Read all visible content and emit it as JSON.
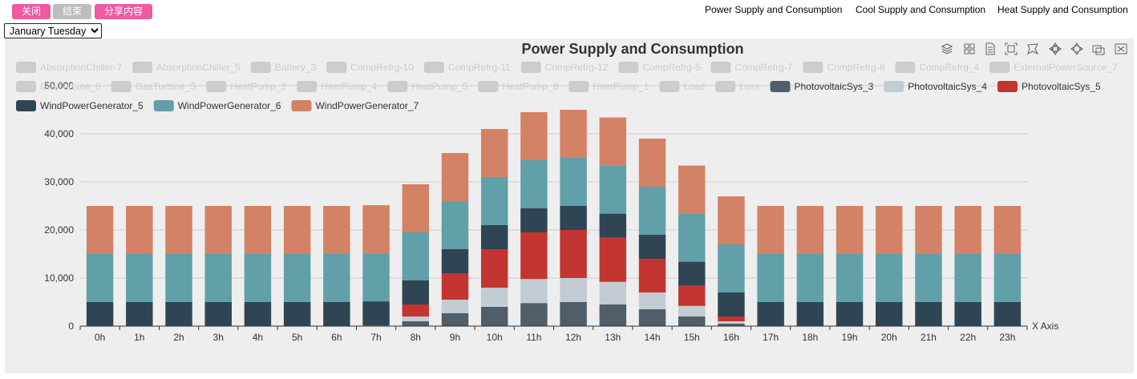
{
  "toolbar": {
    "close_label": "关闭",
    "end_label": "结束",
    "share_label": "分享内容"
  },
  "nav": {
    "power": "Power Supply and Consumption",
    "cool": "Cool Supply and Consumption",
    "heat": "Heat Supply and Consumption"
  },
  "date_select": {
    "selected": "January Tuesday",
    "options": [
      "January Tuesday"
    ]
  },
  "chart_tools": [
    "stack-icon",
    "grid-icon",
    "data-view-icon",
    "zoom-icon",
    "lasso-icon",
    "zoom-reset-icon",
    "restore-icon",
    "save-image-icon",
    "close-icon"
  ],
  "chart_data": {
    "type": "bar",
    "title": "Power Supply and Consumption",
    "xlabel": "X Axis",
    "ylabel": "",
    "ylim": [
      0,
      50000
    ],
    "yticks": [
      0,
      10000,
      20000,
      30000,
      40000,
      50000
    ],
    "ytick_labels": [
      "0",
      "10,000",
      "20,000",
      "30,000",
      "40,000",
      "50,000"
    ],
    "stacked": true,
    "grid": true,
    "legend_position": "top",
    "categories": [
      "0h",
      "1h",
      "2h",
      "3h",
      "4h",
      "5h",
      "6h",
      "7h",
      "8h",
      "9h",
      "10h",
      "11h",
      "12h",
      "13h",
      "14h",
      "15h",
      "16h",
      "17h",
      "18h",
      "19h",
      "20h",
      "21h",
      "22h",
      "23h"
    ],
    "legend": [
      {
        "name": "AbsorptionChiller-7",
        "active": false
      },
      {
        "name": "AbsorptionChiller_5",
        "active": false
      },
      {
        "name": "Battery_3",
        "active": false
      },
      {
        "name": "CompRefrg-10",
        "active": false
      },
      {
        "name": "CompRefrg-11",
        "active": false
      },
      {
        "name": "CompRefrg-12",
        "active": false
      },
      {
        "name": "CompRefrg-5",
        "active": false
      },
      {
        "name": "CompRefrg-7",
        "active": false
      },
      {
        "name": "CompRefrg-8",
        "active": false
      },
      {
        "name": "CompRefrg_4",
        "active": false
      },
      {
        "name": "ExternalPowerSource_7",
        "active": false
      },
      {
        "name": "GasTurbine_6",
        "active": false
      },
      {
        "name": "GasTurbine_5",
        "active": false
      },
      {
        "name": "HeatPump_2",
        "active": false
      },
      {
        "name": "HeatPump_4",
        "active": false
      },
      {
        "name": "HeatPump_5",
        "active": false
      },
      {
        "name": "HeatPump_8",
        "active": false
      },
      {
        "name": "HeatPump_1",
        "active": false
      },
      {
        "name": "Load",
        "active": false
      },
      {
        "name": "Loss",
        "active": false
      },
      {
        "name": "PhotovoltaicSys_3",
        "active": true,
        "color": "#4f5e68"
      },
      {
        "name": "PhotovoltaicSys_4",
        "active": true,
        "color": "#c3ccd2"
      },
      {
        "name": "PhotovoltaicSys_5",
        "active": true,
        "color": "#c23531"
      },
      {
        "name": "WindPowerGenerator_5",
        "active": true,
        "color": "#2f4554"
      },
      {
        "name": "WindPowerGenerator_6",
        "active": true,
        "color": "#61a0a8"
      },
      {
        "name": "WindPowerGenerator_7",
        "active": true,
        "color": "#d48265"
      }
    ],
    "series": [
      {
        "name": "PhotovoltaicSys_3",
        "color": "#4f5e68",
        "values": [
          0,
          0,
          0,
          0,
          0,
          0,
          0,
          50,
          1000,
          2700,
          4000,
          4800,
          5000,
          4500,
          3500,
          2000,
          500,
          0,
          0,
          0,
          0,
          0,
          0,
          0
        ]
      },
      {
        "name": "PhotovoltaicSys_4",
        "color": "#c3ccd2",
        "values": [
          0,
          0,
          0,
          0,
          0,
          0,
          0,
          50,
          1000,
          2800,
          4000,
          5000,
          5000,
          4700,
          3500,
          2200,
          500,
          0,
          0,
          0,
          0,
          0,
          0,
          0
        ]
      },
      {
        "name": "PhotovoltaicSys_5",
        "color": "#c23531",
        "values": [
          0,
          0,
          0,
          0,
          0,
          0,
          0,
          50,
          2500,
          5500,
          8000,
          9700,
          10000,
          9200,
          7000,
          4200,
          1000,
          0,
          0,
          0,
          0,
          0,
          0,
          0
        ]
      },
      {
        "name": "WindPowerGenerator_5",
        "color": "#2f4554",
        "values": [
          5000,
          5000,
          5000,
          5000,
          5000,
          5000,
          5000,
          5000,
          5000,
          5000,
          5000,
          5000,
          5000,
          5000,
          5000,
          5000,
          5000,
          5000,
          5000,
          5000,
          5000,
          5000,
          5000,
          5000
        ]
      },
      {
        "name": "WindPowerGenerator_6",
        "color": "#61a0a8",
        "values": [
          10000,
          10000,
          10000,
          10000,
          10000,
          10000,
          10000,
          10000,
          10000,
          10000,
          10000,
          10000,
          10000,
          10000,
          10000,
          10000,
          10000,
          10000,
          10000,
          10000,
          10000,
          10000,
          10000,
          10000
        ]
      },
      {
        "name": "WindPowerGenerator_7",
        "color": "#d48265",
        "values": [
          10000,
          10000,
          10000,
          10000,
          10000,
          10000,
          10000,
          10000,
          10000,
          10000,
          10000,
          10000,
          10000,
          10000,
          10000,
          10000,
          10000,
          10000,
          10000,
          10000,
          10000,
          10000,
          10000,
          10000
        ]
      }
    ]
  }
}
